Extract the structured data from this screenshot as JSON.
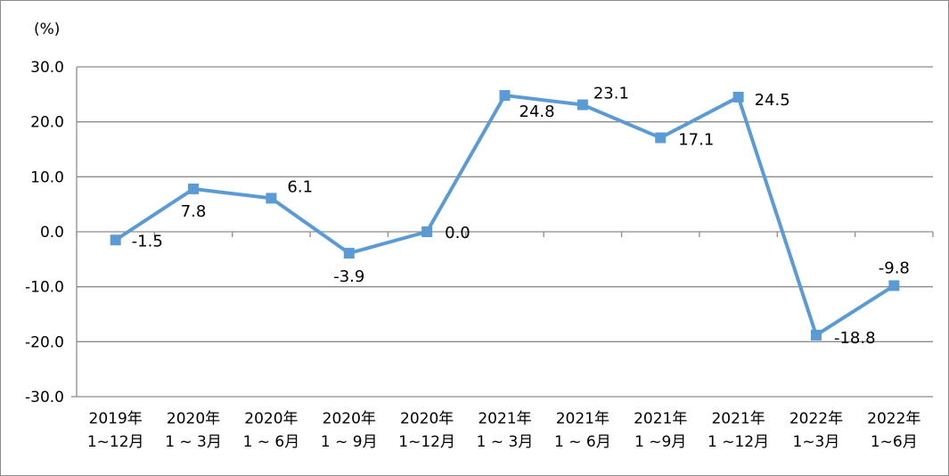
{
  "chart_data": {
    "type": "line",
    "unit_label": "(%)",
    "ylim": [
      -30,
      30
    ],
    "yticks": [
      30,
      20,
      10,
      0,
      -10,
      -20,
      -30
    ],
    "ytick_labels": [
      "30.0",
      "20.0",
      "10.0",
      "0.0",
      "-10.0",
      "-20.0",
      "-30.0"
    ],
    "grid": true,
    "legend": "none",
    "series_color": "#5b9bd5",
    "categories": [
      [
        "2019年",
        "1~12月"
      ],
      [
        "2020年",
        "1 ~ 3月"
      ],
      [
        "2020年",
        "1 ~ 6月"
      ],
      [
        "2020年",
        "1 ~ 9月"
      ],
      [
        "2020年",
        "1~12月"
      ],
      [
        "2021年",
        "1 ~ 3月"
      ],
      [
        "2021年",
        "1 ~ 6月"
      ],
      [
        "2021年",
        "1 ~9月"
      ],
      [
        "2021年",
        "1 ~12月"
      ],
      [
        "2022年",
        "1~3月"
      ],
      [
        "2022年",
        "1~6月"
      ]
    ],
    "values": [
      -1.5,
      7.8,
      6.1,
      -3.9,
      0.0,
      24.8,
      23.1,
      17.1,
      24.5,
      -18.8,
      -9.8
    ],
    "value_labels": [
      "-1.5",
      "7.8",
      "6.1",
      "-3.9",
      "0.0",
      "24.8",
      "23.1",
      "17.1",
      "24.5",
      "-18.8",
      "-9.8"
    ]
  }
}
